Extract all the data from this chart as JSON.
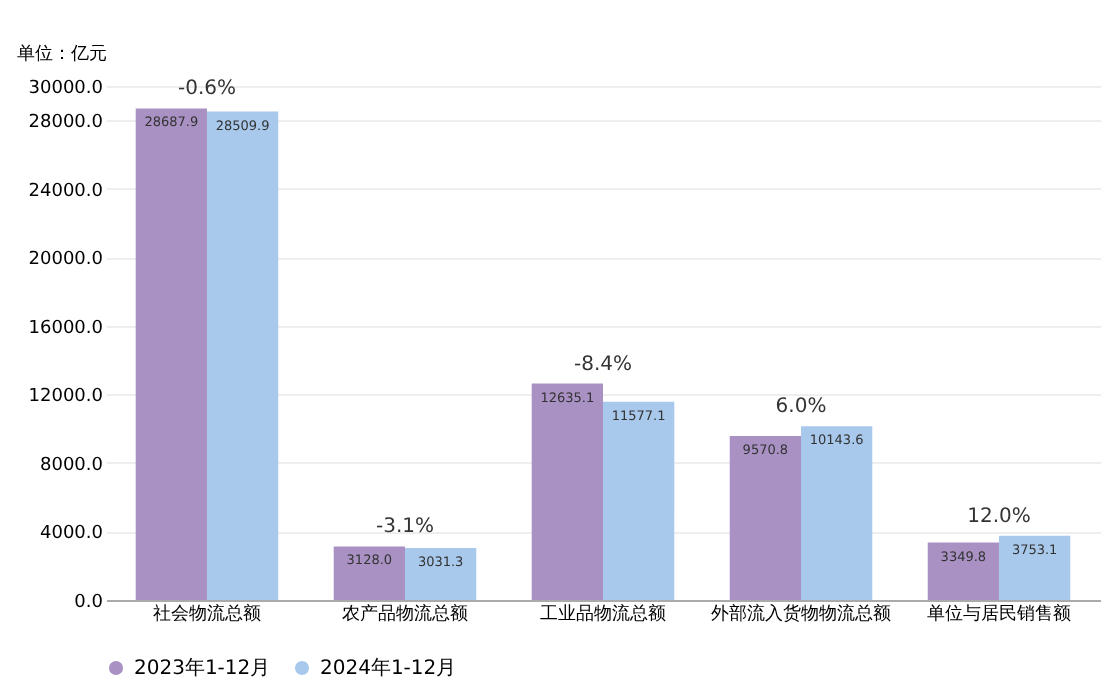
{
  "chart_data": {
    "type": "bar",
    "ylabel": "单位：亿元",
    "categories": [
      "社会物流总额",
      "农产品物流总额",
      "工业品物流总额",
      "外部流入货物物流总额",
      "单位与居民销售额"
    ],
    "series": [
      {
        "name": "2023年1-12月",
        "color": "#a991c4",
        "values": [
          28687.9,
          3128.0,
          12635.1,
          9570.8,
          3349.8
        ]
      },
      {
        "name": "2024年1-12月",
        "color": "#a8c8ec",
        "values": [
          28509.9,
          3031.3,
          11577.1,
          10143.6,
          3753.1
        ]
      }
    ],
    "value_labels": [
      [
        "28687.9",
        "3128.0",
        "12635.1",
        "9570.8",
        "3349.8"
      ],
      [
        "28509.9",
        "3031.3",
        "11577.1",
        "10143.6",
        "3753.1"
      ]
    ],
    "ylim": [
      0,
      30000
    ],
    "yticks": [
      {
        "value": 0,
        "label": "0.0"
      },
      {
        "value": 4000,
        "label": "4000.0"
      },
      {
        "value": 8000,
        "label": "8000.0"
      },
      {
        "value": 12000,
        "label": "12000.0"
      },
      {
        "value": 16000,
        "label": "16000.0"
      },
      {
        "value": 20000,
        "label": "20000.0"
      },
      {
        "value": 24000,
        "label": "24000.0"
      },
      {
        "value": 28000,
        "label": "28000.0"
      },
      {
        "value": 30000,
        "label": "30000.0"
      }
    ],
    "annotations": [
      {
        "text": "-0.6%",
        "x": "社会物流总额",
        "y": 28687.9
      },
      {
        "text": "-3.1%",
        "x": "农产品物流总额",
        "y": 3128.0
      },
      {
        "text": "-8.4%",
        "x": "工业品物流总额",
        "y": 12635.1
      },
      {
        "text": "6.0%",
        "x": "外部流入货物物流总额",
        "y": 10143.6
      },
      {
        "text": "12.0%",
        "x": "单位与居民销售额",
        "y": 3753.1
      }
    ],
    "grid": "y",
    "legend": "bottom"
  }
}
